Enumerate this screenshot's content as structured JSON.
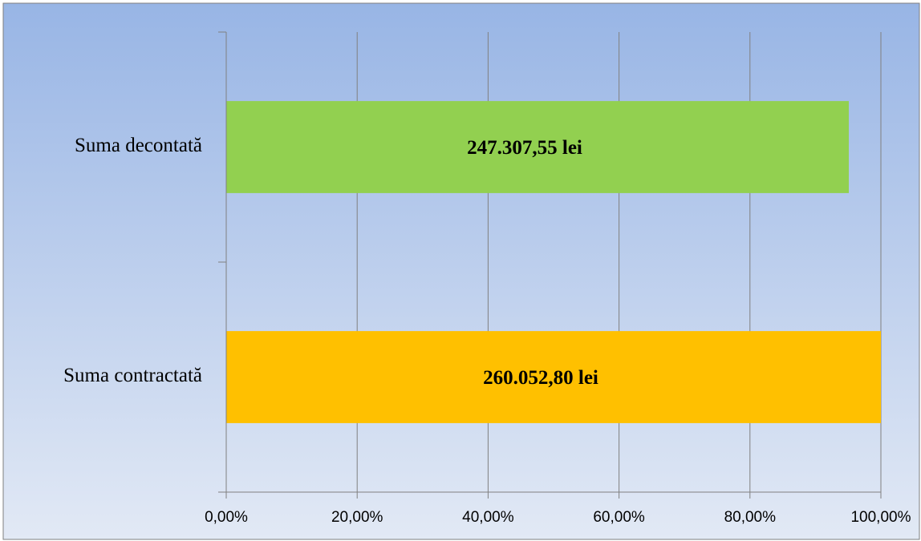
{
  "chart_data": {
    "type": "bar",
    "orientation": "horizontal",
    "title": "",
    "xlabel": "",
    "ylabel": "",
    "categories": [
      "Suma contractată",
      "Suma decontată"
    ],
    "values": [
      100,
      95.1
    ],
    "data_labels": [
      "260.052,80 lei",
      "247.307,55 lei"
    ],
    "xlim": [
      0,
      100
    ],
    "x_ticks": [
      0,
      20,
      40,
      60,
      80,
      100
    ],
    "x_tick_labels": [
      "0,00%",
      "20,00%",
      "40,00%",
      "60,00%",
      "80,00%",
      "100,00%"
    ],
    "grid": true,
    "legend": "none",
    "bar_colors": [
      "#FFC000",
      "#92D050"
    ],
    "background_gradient": [
      "#98B5E5",
      "#E2E9F5"
    ],
    "gridline_color": "#808080"
  }
}
